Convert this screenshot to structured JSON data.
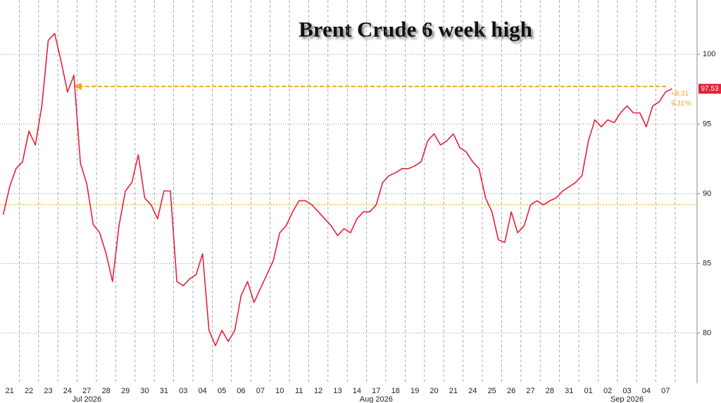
{
  "chart_data": {
    "type": "line",
    "title": "Brent Crude 6 week high",
    "categories": [
      null,
      "21",
      null,
      null,
      "22",
      null,
      null,
      "23",
      null,
      null,
      "24",
      null,
      null,
      "27",
      null,
      null,
      "28",
      null,
      null,
      "29",
      null,
      null,
      "30",
      null,
      null,
      "31",
      null,
      null,
      "03",
      null,
      null,
      "04",
      null,
      null,
      "05",
      null,
      null,
      "06",
      null,
      null,
      "07",
      null,
      null,
      "10",
      null,
      null,
      "11",
      null,
      null,
      "12",
      null,
      null,
      "13",
      null,
      null,
      "14",
      null,
      null,
      "17",
      null,
      null,
      "18",
      null,
      null,
      "19",
      null,
      null,
      "20",
      null,
      null,
      "21",
      null,
      null,
      "24",
      null,
      null,
      "25",
      null,
      null,
      "26",
      null,
      null,
      "27",
      null,
      null,
      "28",
      null,
      null,
      "31",
      null,
      null,
      "01",
      null,
      null,
      "02",
      null,
      null,
      "03",
      null,
      null,
      "04",
      null,
      null,
      "07",
      null
    ],
    "months": [
      "Jul 2026",
      "Aug 2026",
      "Sep 2026"
    ],
    "series": [
      {
        "name": "Brent Crude",
        "color": "#e8203a",
        "values": [
          88.5,
          90.5,
          91.8,
          92.3,
          94.5,
          93.5,
          96.3,
          101.0,
          101.5,
          99.5,
          97.3,
          98.5,
          92.2,
          90.7,
          87.8,
          87.2,
          85.7,
          83.7,
          87.7,
          90.2,
          90.8,
          92.8,
          89.7,
          89.2,
          88.2,
          90.2,
          90.2,
          83.7,
          83.4,
          83.9,
          84.2,
          85.7,
          80.2,
          79.1,
          80.2,
          79.4,
          80.2,
          82.7,
          83.7,
          82.2,
          83.2,
          84.2,
          85.2,
          87.2,
          87.7,
          88.7,
          89.5,
          89.5,
          89.2,
          88.7,
          88.2,
          87.7,
          87.0,
          87.5,
          87.2,
          88.2,
          88.7,
          88.7,
          89.2,
          90.8,
          91.3,
          91.5,
          91.8,
          91.8,
          92.0,
          92.3,
          93.8,
          94.3,
          93.5,
          93.8,
          94.3,
          93.3,
          93.0,
          92.3,
          91.8,
          89.7,
          88.7,
          86.7,
          86.5,
          88.7,
          87.2,
          87.7,
          89.2,
          89.5,
          89.2,
          89.5,
          89.7,
          90.2,
          90.5,
          90.8,
          91.3,
          93.8,
          95.3,
          94.8,
          95.3,
          95.1,
          95.8,
          96.3,
          95.8,
          95.8,
          94.8,
          96.3,
          96.6,
          97.3,
          97.53
        ]
      }
    ],
    "ylim": [
      76.4,
      103.9
    ],
    "yticks": [
      80,
      85,
      90,
      95,
      100
    ],
    "grid": true,
    "annotations": {
      "last_value": 97.53,
      "change_label": "+8.31",
      "change_pct_label": "9.31%",
      "reference_line": 89.22,
      "arrow_level": 97.7,
      "color": "#f5a623"
    }
  }
}
